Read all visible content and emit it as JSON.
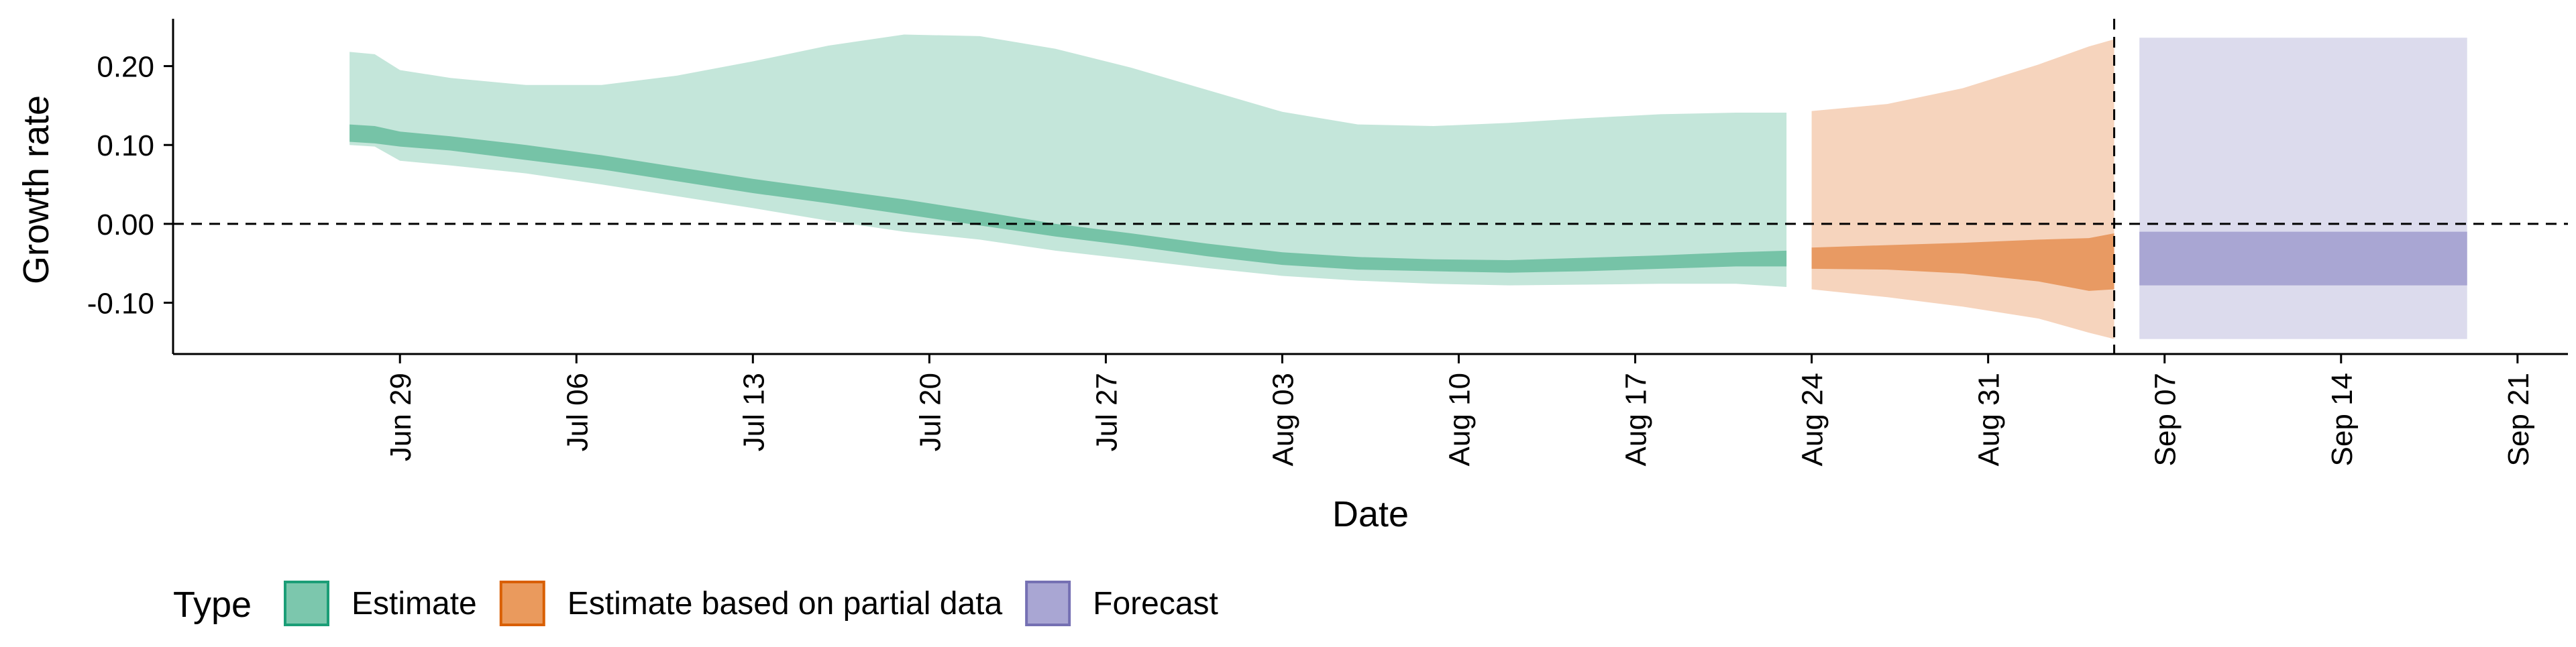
{
  "chart_data": {
    "type": "area",
    "xlabel": "Date",
    "ylabel": "Growth rate",
    "x_ticks": [
      "Jun 29",
      "Jul 06",
      "Jul 13",
      "Jul 20",
      "Jul 27",
      "Aug 03",
      "Aug 10",
      "Aug 17",
      "Aug 24",
      "Aug 31",
      "Sep 07",
      "Sep 14",
      "Sep 21"
    ],
    "y_ticks": [
      "0.20",
      "0.10",
      "0.00",
      "-0.10"
    ],
    "ylim": [
      -0.165,
      0.26
    ],
    "xlim": [
      "2020-06-20",
      "2020-09-23"
    ],
    "grid": false,
    "hline": 0.0,
    "vline": "2020-09-05",
    "legend": {
      "title": "Type",
      "position": "bottom-left",
      "items": [
        {
          "label": "Estimate",
          "fill": "#7cc7ad",
          "stroke": "#1b9e77"
        },
        {
          "label": "Estimate based on partial data",
          "fill": "#ea9a5d",
          "stroke": "#d95f02"
        },
        {
          "label": "Forecast",
          "fill": "#a9a6d3",
          "stroke": "#7570b3"
        }
      ]
    },
    "series": [
      {
        "name": "Estimate",
        "colors": {
          "outer": "#c4e6da",
          "inner": "#76c3a7"
        },
        "x": [
          "2020-06-27",
          "2020-06-28",
          "2020-06-29",
          "2020-07-01",
          "2020-07-04",
          "2020-07-07",
          "2020-07-10",
          "2020-07-13",
          "2020-07-16",
          "2020-07-19",
          "2020-07-22",
          "2020-07-25",
          "2020-07-28",
          "2020-07-31",
          "2020-08-03",
          "2020-08-06",
          "2020-08-09",
          "2020-08-12",
          "2020-08-15",
          "2020-08-18",
          "2020-08-21",
          "2020-08-23"
        ],
        "outer_upper": [
          0.218,
          0.215,
          0.195,
          0.185,
          0.176,
          0.176,
          0.188,
          0.206,
          0.226,
          0.24,
          0.238,
          0.222,
          0.198,
          0.17,
          0.142,
          0.126,
          0.124,
          0.128,
          0.134,
          0.139,
          0.141,
          0.141
        ],
        "outer_lower": [
          0.1,
          0.098,
          0.08,
          0.074,
          0.064,
          0.05,
          0.035,
          0.02,
          0.004,
          -0.01,
          -0.02,
          -0.034,
          -0.045,
          -0.056,
          -0.066,
          -0.072,
          -0.076,
          -0.078,
          -0.077,
          -0.076,
          -0.076,
          -0.08
        ],
        "inner_upper": [
          0.126,
          0.124,
          0.117,
          0.111,
          0.1,
          0.087,
          0.072,
          0.057,
          0.044,
          0.031,
          0.016,
          0.0,
          -0.012,
          -0.025,
          -0.036,
          -0.042,
          -0.045,
          -0.046,
          -0.043,
          -0.04,
          -0.036,
          -0.034
        ],
        "inner_lower": [
          0.104,
          0.102,
          0.098,
          0.093,
          0.081,
          0.069,
          0.054,
          0.039,
          0.026,
          0.012,
          -0.002,
          -0.016,
          -0.028,
          -0.041,
          -0.052,
          -0.058,
          -0.06,
          -0.062,
          -0.06,
          -0.057,
          -0.054,
          -0.054
        ]
      },
      {
        "name": "Estimate based on partial data",
        "colors": {
          "outer": "#f6d4bd",
          "inner": "#e89a63"
        },
        "x": [
          "2020-08-24",
          "2020-08-27",
          "2020-08-30",
          "2020-09-02",
          "2020-09-04",
          "2020-09-05"
        ],
        "outer_upper": [
          0.143,
          0.152,
          0.172,
          0.202,
          0.225,
          0.234
        ],
        "outer_lower": [
          -0.083,
          -0.093,
          -0.105,
          -0.12,
          -0.138,
          -0.146
        ],
        "inner_upper": [
          -0.03,
          -0.027,
          -0.024,
          -0.02,
          -0.018,
          -0.012
        ],
        "inner_lower": [
          -0.057,
          -0.058,
          -0.063,
          -0.073,
          -0.085,
          -0.083
        ]
      },
      {
        "name": "Forecast",
        "colors": {
          "outer": "#dcdbed",
          "inner": "#a9a6d3"
        },
        "x": [
          "2020-09-06",
          "2020-09-19"
        ],
        "outer_upper": [
          0.236,
          0.236
        ],
        "outer_lower": [
          -0.146,
          -0.146
        ],
        "inner_upper": [
          -0.01,
          -0.01
        ],
        "inner_lower": [
          -0.078,
          -0.078
        ]
      }
    ]
  }
}
